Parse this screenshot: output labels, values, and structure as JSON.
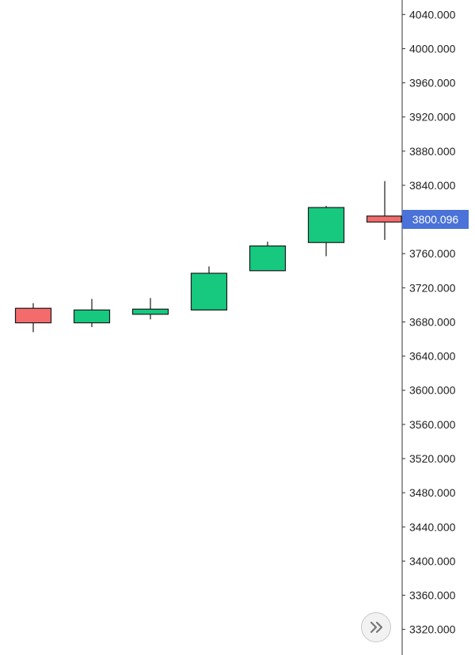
{
  "chart_data": {
    "type": "candlestick",
    "y_axis": {
      "position": "right",
      "ticks": [
        "4040.000",
        "4000.000",
        "3960.000",
        "3920.000",
        "3880.000",
        "3840.000",
        "3800.000",
        "3760.000",
        "3720.000",
        "3680.000",
        "3640.000",
        "3600.000",
        "3560.000",
        "3520.000",
        "3480.000",
        "3440.000",
        "3400.000",
        "3360.000",
        "3320.000"
      ],
      "range": [
        3290,
        4057
      ]
    },
    "candles": [
      {
        "open": 3696,
        "high": 3702,
        "low": 3668,
        "close": 3679
      },
      {
        "open": 3679,
        "high": 3707,
        "low": 3674,
        "close": 3694
      },
      {
        "open": 3689,
        "high": 3708,
        "low": 3683,
        "close": 3695
      },
      {
        "open": 3694,
        "high": 3745,
        "low": 3694,
        "close": 3737
      },
      {
        "open": 3740,
        "high": 3774,
        "low": 3740,
        "close": 3769
      },
      {
        "open": 3773,
        "high": 3816,
        "low": 3757,
        "close": 3814
      },
      {
        "open": 3804,
        "high": 3845,
        "low": 3776,
        "close": 3797
      }
    ],
    "current_price": {
      "label": "3800.096",
      "value": 3800.096
    },
    "colors": {
      "up": "#16c97e",
      "down": "#f46b6b",
      "wick": "#1a1a1a",
      "axis_line": "#333333",
      "price_tag": "#4a72d8"
    }
  },
  "controls": {
    "scroll_right_icon": "double-chevron-right-icon"
  }
}
